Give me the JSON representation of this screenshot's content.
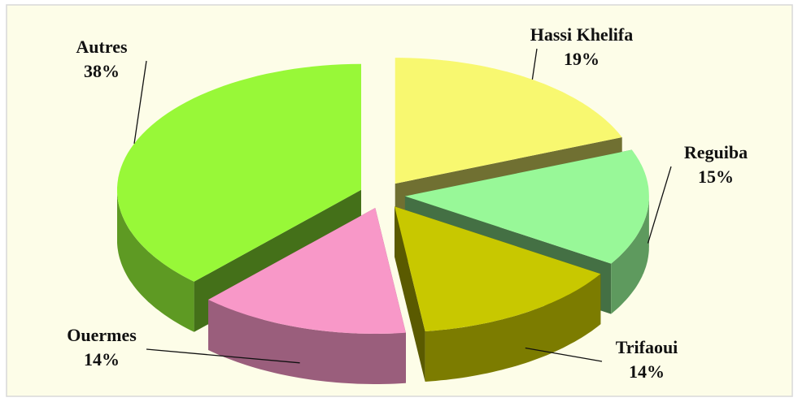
{
  "chart_data": {
    "type": "pie3d",
    "categories": [
      "Hassi Khelifa",
      "Reguiba",
      "Trifaoui",
      "Ouermes",
      "Autres"
    ],
    "values": [
      19,
      15,
      14,
      14,
      38
    ],
    "value_labels": [
      "19%",
      "15%",
      "14%",
      "14%",
      "38%"
    ],
    "colors": [
      "#f8f870",
      "#98f898",
      "#c8c800",
      "#f898c8",
      "#98f838"
    ],
    "exploded": true
  }
}
